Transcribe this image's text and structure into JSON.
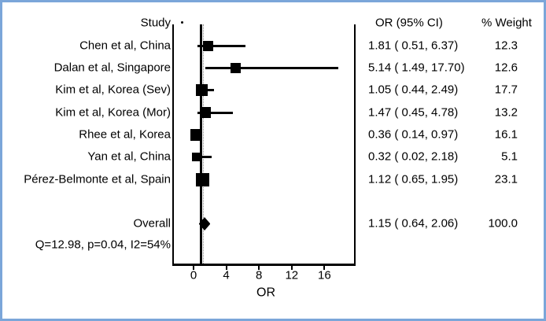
{
  "frame": {
    "border_color": "#7ba6d9",
    "background": "#ffffff"
  },
  "header": {
    "study_col": "Study",
    "or_ci_col": "OR (95% CI)",
    "weight_col": "% Weight"
  },
  "heterogeneity_text": "Q=12.98, p=0.04, I2=54%",
  "axis": {
    "label": "OR",
    "tick_labels": [
      "0",
      "4",
      "8",
      "12",
      "16"
    ]
  },
  "chart_data": {
    "type": "scatter",
    "subtype": "forest-plot",
    "title": "",
    "xlabel": "OR",
    "xlim": [
      -2.5,
      20
    ],
    "x_ticks": [
      0,
      4,
      8,
      12,
      16
    ],
    "null_line_x": 1,
    "grid": false,
    "studies": [
      {
        "label": "Chen et al, China",
        "or": 1.81,
        "ci_low": 0.51,
        "ci_high": 6.37,
        "weight_pct": 12.3,
        "or_ci_text": "1.81 ( 0.51, 6.37)",
        "weight_text": "12.3"
      },
      {
        "label": "Dalan et al, Singapore",
        "or": 5.14,
        "ci_low": 1.49,
        "ci_high": 17.7,
        "weight_pct": 12.6,
        "or_ci_text": "5.14 ( 1.49, 17.70)",
        "weight_text": "12.6"
      },
      {
        "label": "Kim et al, Korea (Sev)",
        "or": 1.05,
        "ci_low": 0.44,
        "ci_high": 2.49,
        "weight_pct": 17.7,
        "or_ci_text": "1.05 ( 0.44, 2.49)",
        "weight_text": "17.7"
      },
      {
        "label": "Kim et al, Korea (Mor)",
        "or": 1.47,
        "ci_low": 0.45,
        "ci_high": 4.78,
        "weight_pct": 13.2,
        "or_ci_text": "1.47 ( 0.45, 4.78)",
        "weight_text": "13.2"
      },
      {
        "label": "Rhee et al, Korea",
        "or": 0.36,
        "ci_low": 0.14,
        "ci_high": 0.97,
        "weight_pct": 16.1,
        "or_ci_text": "0.36 ( 0.14, 0.97)",
        "weight_text": "16.1"
      },
      {
        "label": "Yan et al, China",
        "or": 0.32,
        "ci_low": 0.02,
        "ci_high": 2.18,
        "weight_pct": 5.1,
        "or_ci_text": "0.32 ( 0.02, 2.18)",
        "weight_text": "5.1"
      },
      {
        "label": "Pérez-Belmonte et al, Spain",
        "or": 1.12,
        "ci_low": 0.65,
        "ci_high": 1.95,
        "weight_pct": 23.1,
        "or_ci_text": "1.12 ( 0.65, 1.95)",
        "weight_text": "23.1"
      }
    ],
    "overall": {
      "label": "Overall",
      "or": 1.15,
      "ci_low": 0.64,
      "ci_high": 2.06,
      "weight_pct": 100.0,
      "or_ci_text": "1.15 ( 0.64, 2.06)",
      "weight_text": "100.0"
    },
    "heterogeneity": {
      "Q": 12.98,
      "p": 0.04,
      "I2_pct": 54,
      "text": "Q=12.98, p=0.04, I2=54%"
    }
  }
}
